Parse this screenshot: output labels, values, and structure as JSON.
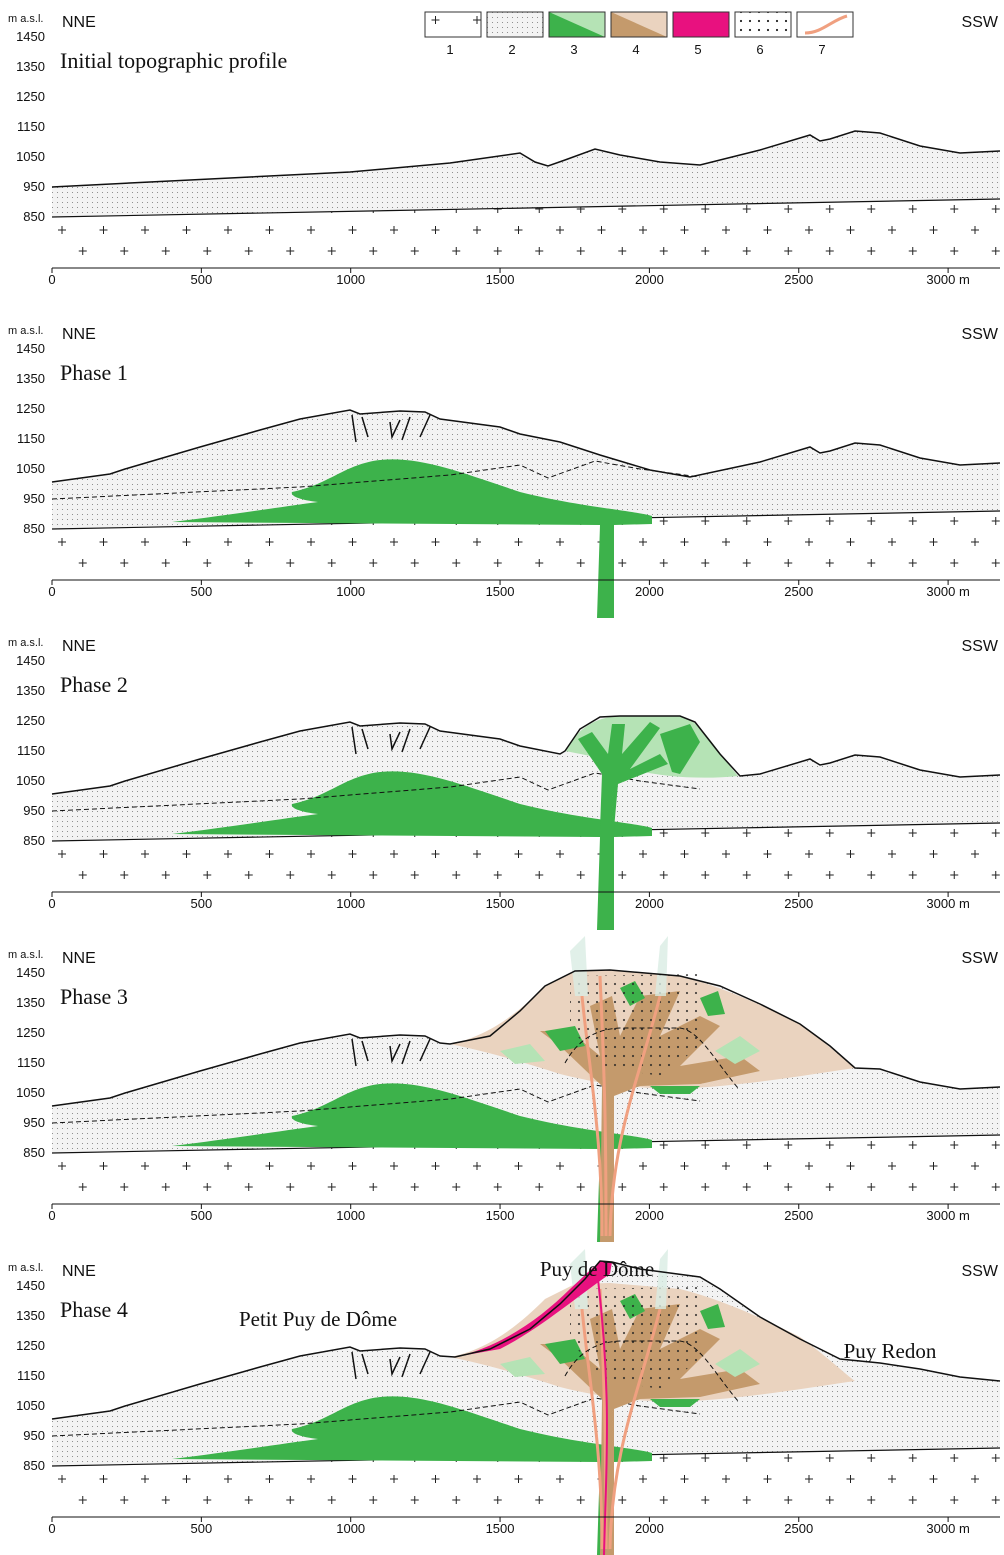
{
  "legend": {
    "items": [
      "1",
      "2",
      "3",
      "4",
      "5",
      "6",
      "7"
    ]
  },
  "axes": {
    "y_unit": "m a.s.l.",
    "left_end": "NNE",
    "right_end": "SSW",
    "yticks": [
      1450,
      1350,
      1250,
      1150,
      1050,
      950,
      850
    ],
    "xticks": [
      0,
      500,
      1000,
      1500,
      2000,
      2500,
      {
        "value": 3000,
        "label": "3000 m"
      }
    ]
  },
  "panels": [
    {
      "title": "Initial topographic profile"
    },
    {
      "title": "Phase 1"
    },
    {
      "title": "Phase 2"
    },
    {
      "title": "Phase 3"
    },
    {
      "title": "Phase 4",
      "labels": [
        "Petit Puy de Dôme",
        "Puy de Dôme",
        "Puy Redon"
      ]
    }
  ]
}
